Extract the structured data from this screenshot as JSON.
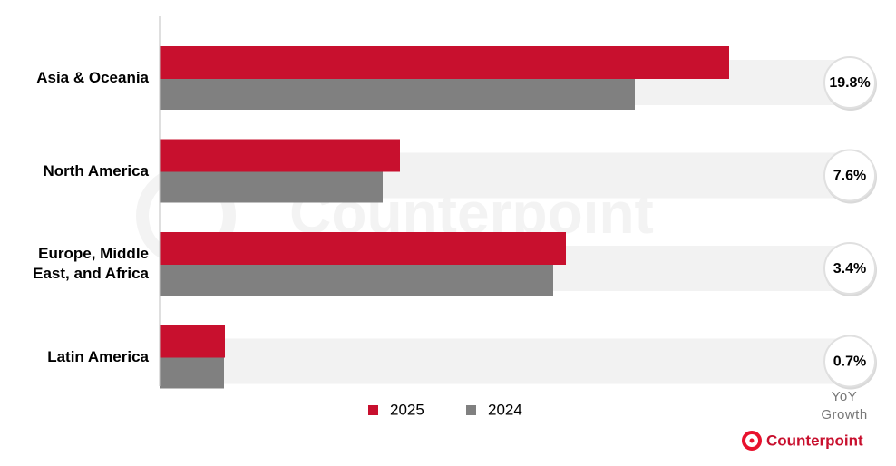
{
  "chart_data": {
    "type": "barh",
    "categories": [
      "Asia & Oceania",
      "North America",
      "Europe, Middle East, and Africa",
      "Latin America"
    ],
    "series": [
      {
        "name": "2025",
        "color": "#c8102e",
        "values": [
          62.8,
          26.5,
          44.8,
          7.2
        ]
      },
      {
        "name": "2024",
        "color": "#808080",
        "values": [
          52.4,
          24.6,
          43.4,
          7.1
        ]
      }
    ],
    "xlim": [
      0,
      76
    ],
    "yoy_growth": {
      "label": "YoY Growth",
      "values": [
        19.8,
        7.6,
        3.4,
        0.7
      ],
      "value_labels": [
        "19.8%",
        "7.6%",
        "3.4%",
        "0.7%"
      ]
    },
    "legend": "bottom",
    "brand": "Counterpoint"
  }
}
